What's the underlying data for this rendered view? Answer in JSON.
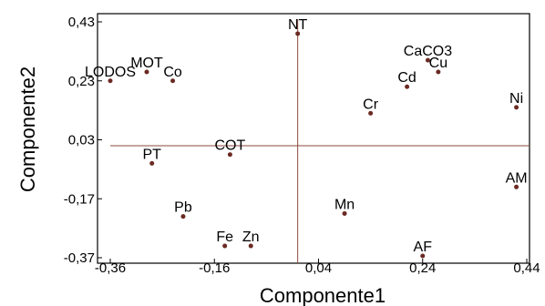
{
  "chart_data": {
    "type": "scatter",
    "title": "",
    "xlabel": "Componente1",
    "ylabel": "Componente2",
    "xlim": [
      -0.36,
      0.44
    ],
    "ylim": [
      -0.37,
      0.43
    ],
    "x_ticks": [
      "-0,36",
      "-0,16",
      "0,04",
      "0,24",
      "0,44"
    ],
    "y_ticks": [
      "0,43",
      "0,23",
      "0,03",
      "-0,17",
      "-0,37"
    ],
    "reference_lines": {
      "x": 0.0,
      "y": 0.01
    },
    "grid": false,
    "point_color": "#6b2a22",
    "reference_line_color": "#8b4a3c",
    "points": [
      {
        "label": "NT",
        "x": 0.0,
        "y": 0.39
      },
      {
        "label": "MOT",
        "x": -0.29,
        "y": 0.26
      },
      {
        "label": "Co",
        "x": -0.24,
        "y": 0.23
      },
      {
        "label": "LODOS",
        "x": -0.36,
        "y": 0.23
      },
      {
        "label": "CaCO3",
        "x": 0.25,
        "y": 0.3
      },
      {
        "label": "Cu",
        "x": 0.27,
        "y": 0.26
      },
      {
        "label": "Cd",
        "x": 0.21,
        "y": 0.21
      },
      {
        "label": "Ni",
        "x": 0.42,
        "y": 0.14
      },
      {
        "label": "Cr",
        "x": 0.14,
        "y": 0.12
      },
      {
        "label": "COT",
        "x": -0.13,
        "y": -0.02
      },
      {
        "label": "PT",
        "x": -0.28,
        "y": -0.05
      },
      {
        "label": "AM",
        "x": 0.42,
        "y": -0.13
      },
      {
        "label": "Mn",
        "x": 0.09,
        "y": -0.22
      },
      {
        "label": "Pb",
        "x": -0.22,
        "y": -0.23
      },
      {
        "label": "Fe",
        "x": -0.14,
        "y": -0.33
      },
      {
        "label": "Zn",
        "x": -0.09,
        "y": -0.33
      },
      {
        "label": "AF",
        "x": 0.24,
        "y": -0.38
      }
    ]
  }
}
